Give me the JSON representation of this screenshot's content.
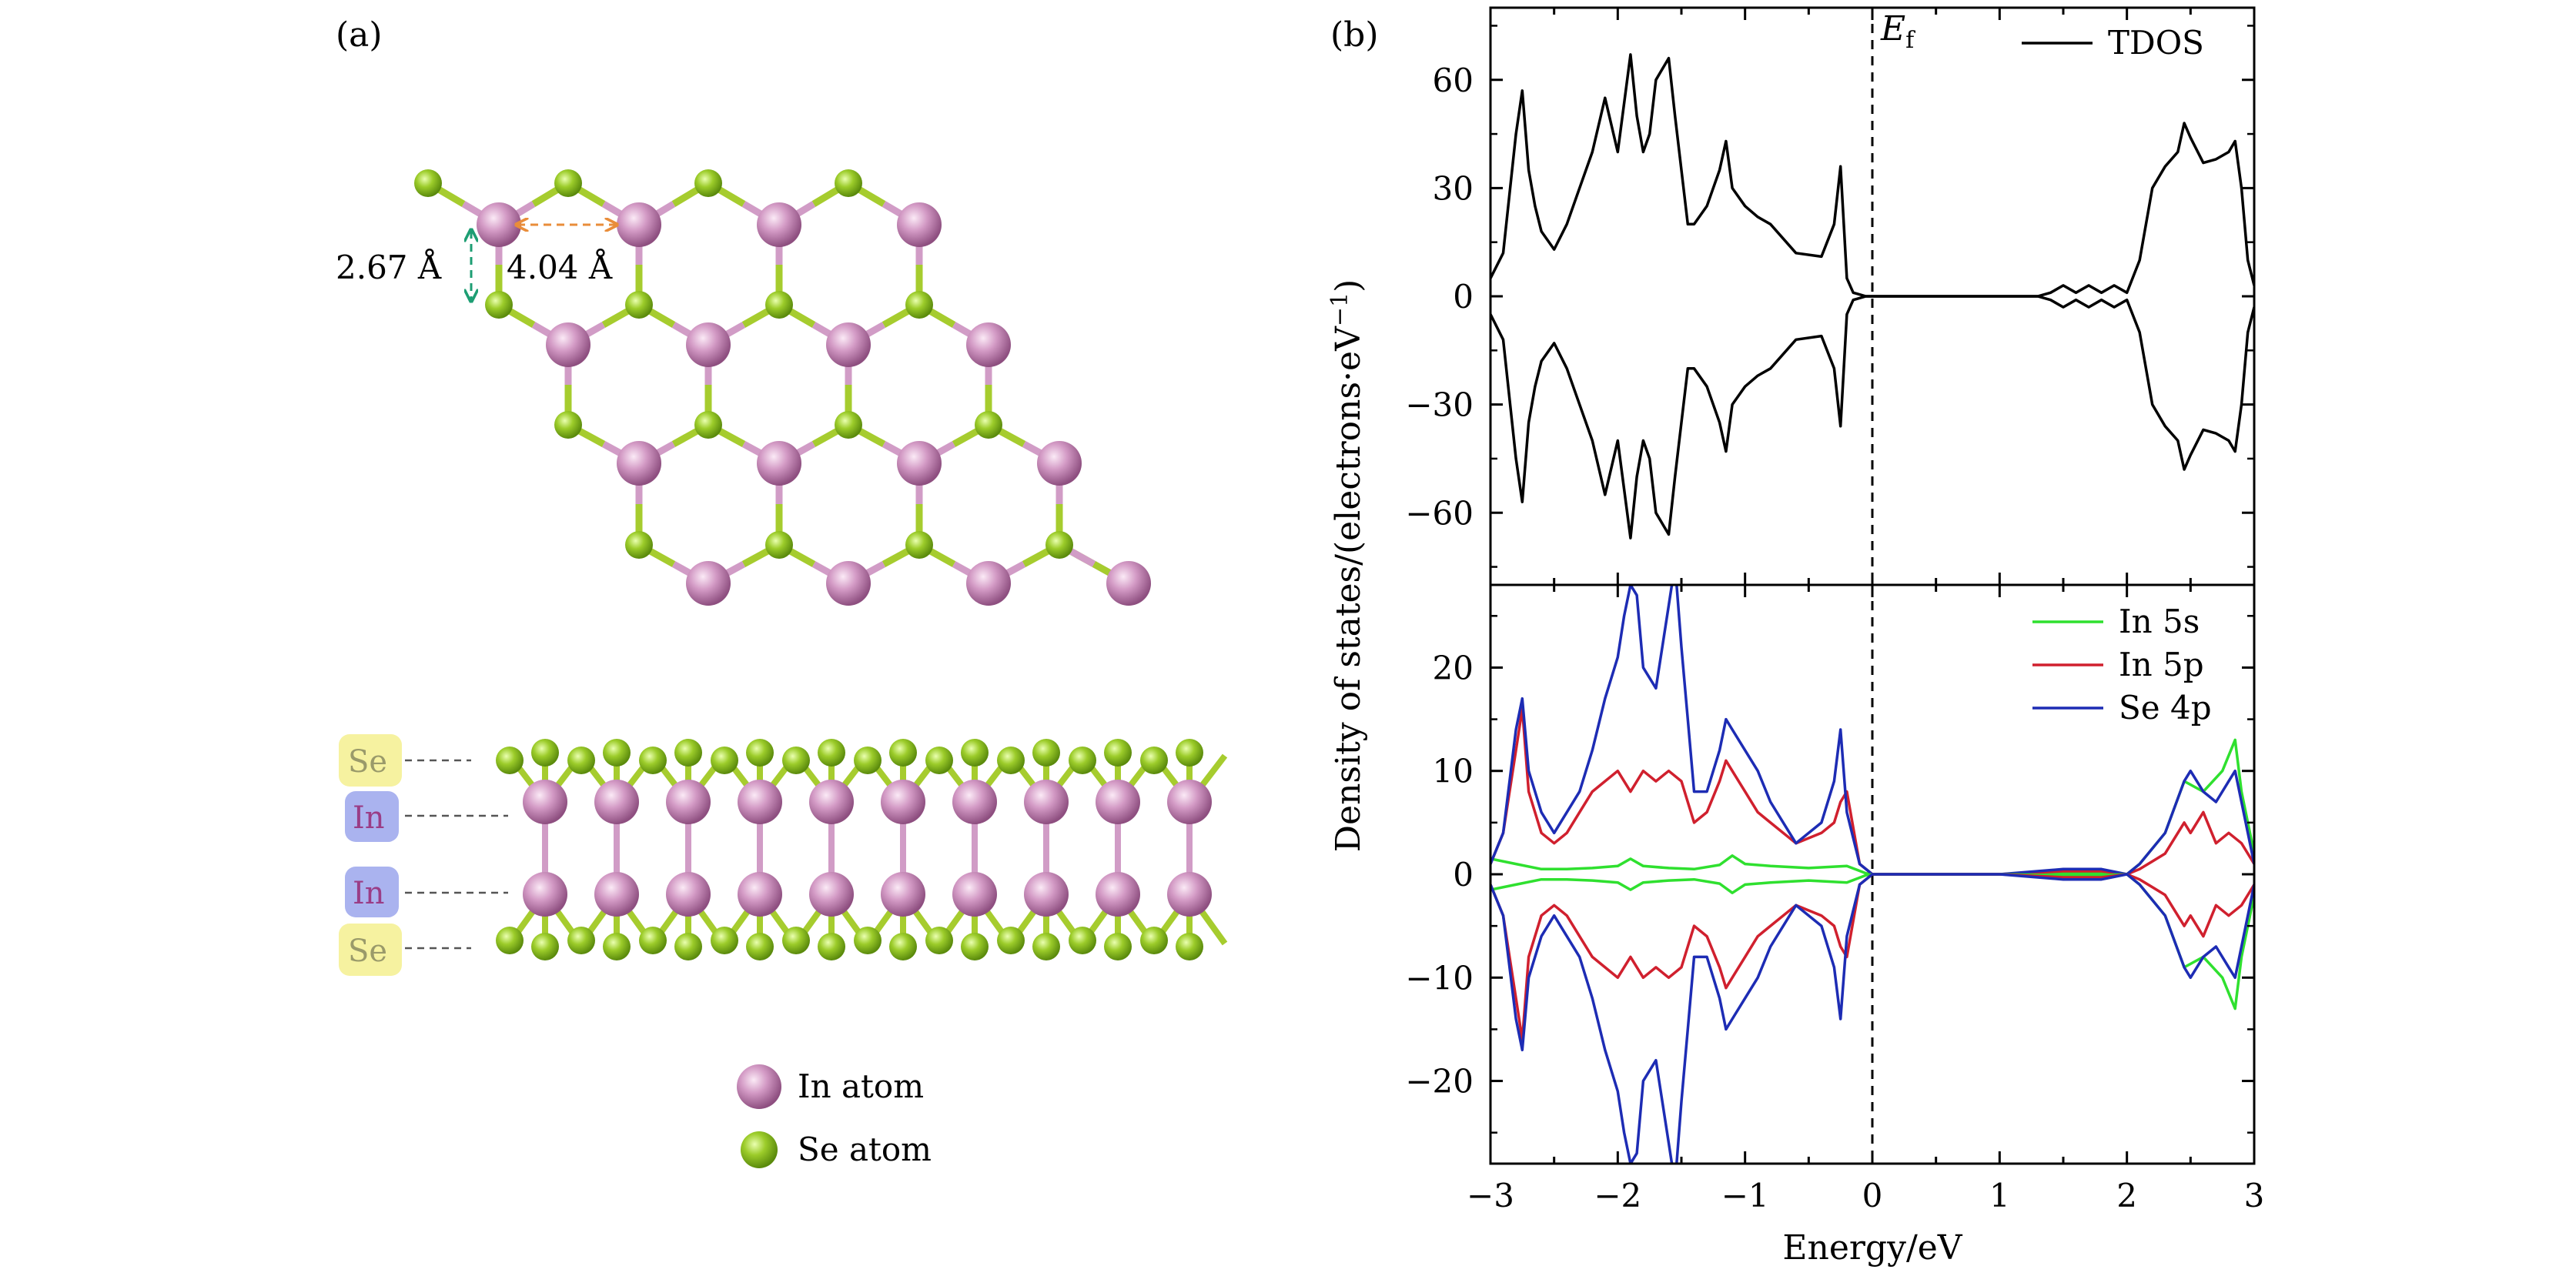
{
  "panel_a": {
    "label": "(a)",
    "dims": {
      "vertical": "2.67 Å",
      "horizontal": "4.04 Å"
    },
    "side_labels": [
      "Se",
      "In",
      "In",
      "Se"
    ],
    "legend": [
      {
        "label": "In atom",
        "color": "#b878a6"
      },
      {
        "label": "Se atom",
        "color": "#8fc21b"
      }
    ],
    "colors": {
      "in": "#c888b6",
      "se": "#93c524",
      "bond_se": "#a6cc2e",
      "bond_in": "#d19cc6",
      "dim_green": "#1d9e73",
      "dim_orange": "#e98d3a",
      "tag_se": "#f6f2a0",
      "tag_in": "#aab3ef"
    }
  },
  "panel_b": {
    "label": "(b)",
    "ylabel": "Density of states/(electrons·eV",
    "ylabel_sup": "−1",
    "ylabel_close": ")",
    "xlabel": "Energy/eV",
    "ef_label": "E",
    "ef_sub": "f",
    "chart_data": [
      {
        "type": "line",
        "xlim": [
          -3,
          3
        ],
        "ylim": [
          -80,
          80
        ],
        "yticks": [
          "60",
          "30",
          "0",
          "−30",
          "−60"
        ],
        "ytick_values": [
          60,
          30,
          0,
          -30,
          -60
        ],
        "legend_position": "top-right",
        "series": [
          {
            "name": "TDOS",
            "color": "#000000",
            "x": [
              -3.0,
              -2.9,
              -2.8,
              -2.75,
              -2.7,
              -2.65,
              -2.6,
              -2.5,
              -2.4,
              -2.3,
              -2.2,
              -2.1,
              -2.0,
              -1.9,
              -1.85,
              -1.8,
              -1.75,
              -1.7,
              -1.6,
              -1.55,
              -1.5,
              -1.45,
              -1.4,
              -1.3,
              -1.2,
              -1.15,
              -1.1,
              -1.0,
              -0.9,
              -0.8,
              -0.6,
              -0.4,
              -0.3,
              -0.25,
              -0.2,
              -0.15,
              -0.05,
              0.0,
              0.5,
              1.0,
              1.3,
              1.4,
              1.5,
              1.6,
              1.7,
              1.8,
              1.9,
              2.0,
              2.1,
              2.2,
              2.3,
              2.4,
              2.45,
              2.5,
              2.6,
              2.7,
              2.8,
              2.85,
              2.9,
              2.95,
              3.0
            ],
            "y": [
              5,
              12,
              45,
              57,
              35,
              25,
              18,
              13,
              20,
              30,
              40,
              55,
              40,
              67,
              50,
              40,
              45,
              60,
              66,
              50,
              35,
              20,
              20,
              25,
              35,
              43,
              30,
              25,
              22,
              20,
              12,
              11,
              20,
              36,
              5,
              1,
              0,
              0,
              0,
              0,
              0,
              1,
              3,
              1,
              3,
              1,
              3,
              1,
              10,
              30,
              36,
              40,
              48,
              44,
              37,
              38,
              40,
              43,
              30,
              10,
              3
            ]
          },
          {
            "name": "",
            "color": "#000000",
            "x": [
              -3.0,
              -2.9,
              -2.8,
              -2.75,
              -2.7,
              -2.65,
              -2.6,
              -2.5,
              -2.4,
              -2.3,
              -2.2,
              -2.1,
              -2.0,
              -1.9,
              -1.85,
              -1.8,
              -1.75,
              -1.7,
              -1.6,
              -1.55,
              -1.5,
              -1.45,
              -1.4,
              -1.3,
              -1.2,
              -1.15,
              -1.1,
              -1.0,
              -0.9,
              -0.8,
              -0.6,
              -0.4,
              -0.3,
              -0.25,
              -0.2,
              -0.15,
              -0.05,
              0.0,
              0.5,
              1.0,
              1.3,
              1.4,
              1.5,
              1.6,
              1.7,
              1.8,
              1.9,
              2.0,
              2.1,
              2.2,
              2.3,
              2.4,
              2.45,
              2.5,
              2.6,
              2.7,
              2.8,
              2.85,
              2.9,
              2.95,
              3.0
            ],
            "y": [
              -5,
              -12,
              -45,
              -57,
              -35,
              -25,
              -18,
              -13,
              -20,
              -30,
              -40,
              -55,
              -40,
              -67,
              -50,
              -40,
              -45,
              -60,
              -66,
              -50,
              -35,
              -20,
              -20,
              -25,
              -35,
              -43,
              -30,
              -25,
              -22,
              -20,
              -12,
              -11,
              -20,
              -36,
              -5,
              -1,
              0,
              0,
              0,
              0,
              0,
              -1,
              -3,
              -1,
              -3,
              -1,
              -3,
              -1,
              -10,
              -30,
              -36,
              -40,
              -48,
              -44,
              -37,
              -38,
              -40,
              -43,
              -30,
              -10,
              -3
            ]
          }
        ]
      },
      {
        "type": "line",
        "xlim": [
          -3,
          3
        ],
        "ylim": [
          -28,
          28
        ],
        "xticks": [
          "−3",
          "−2",
          "−1",
          "0",
          "1",
          "2",
          "3"
        ],
        "xtick_values": [
          -3,
          -2,
          -1,
          0,
          1,
          2,
          3
        ],
        "yticks": [
          "20",
          "10",
          "0",
          "−10",
          "−20"
        ],
        "ytick_values": [
          20,
          10,
          0,
          -10,
          -20
        ],
        "legend_position": "top-right",
        "series": [
          {
            "name": "In 5s",
            "color": "#2fe02f",
            "x": [
              -3.0,
              -2.8,
              -2.6,
              -2.4,
              -2.2,
              -2.0,
              -1.9,
              -1.8,
              -1.6,
              -1.4,
              -1.2,
              -1.1,
              -1.0,
              -0.8,
              -0.5,
              -0.2,
              -0.05,
              0.0,
              1.0,
              1.5,
              1.8,
              2.0,
              2.1,
              2.3,
              2.45,
              2.6,
              2.75,
              2.85,
              2.9,
              3.0
            ],
            "y": [
              1.5,
              1.0,
              0.5,
              0.5,
              0.6,
              0.8,
              1.5,
              0.8,
              0.6,
              0.5,
              0.9,
              1.8,
              1.0,
              0.8,
              0.6,
              0.8,
              0.1,
              0,
              0,
              0.1,
              0.1,
              0,
              1,
              4,
              9,
              8,
              10,
              13,
              8,
              2
            ]
          },
          {
            "name": "In 5p",
            "color": "#d0202e",
            "x": [
              -3.0,
              -2.9,
              -2.8,
              -2.75,
              -2.7,
              -2.6,
              -2.5,
              -2.4,
              -2.3,
              -2.2,
              -2.1,
              -2.0,
              -1.9,
              -1.8,
              -1.7,
              -1.6,
              -1.5,
              -1.4,
              -1.3,
              -1.2,
              -1.15,
              -1.1,
              -1.0,
              -0.9,
              -0.8,
              -0.6,
              -0.4,
              -0.3,
              -0.25,
              -0.2,
              -0.1,
              0.0,
              1.0,
              1.5,
              1.8,
              2.0,
              2.1,
              2.3,
              2.45,
              2.5,
              2.6,
              2.7,
              2.8,
              2.9,
              3.0
            ],
            "y": [
              1,
              4,
              12,
              16,
              8,
              4,
              3,
              4,
              6,
              8,
              9,
              10,
              8,
              10,
              9,
              10,
              9,
              5,
              6,
              9,
              11,
              10,
              8,
              6,
              5,
              3,
              4,
              5,
              7,
              8,
              1,
              0,
              0,
              0.3,
              0.3,
              0,
              0.5,
              2,
              5,
              4,
              6,
              3,
              4,
              3,
              1
            ]
          },
          {
            "name": "Se 4p",
            "color": "#1d2cb4",
            "x": [
              -3.0,
              -2.9,
              -2.8,
              -2.75,
              -2.7,
              -2.6,
              -2.5,
              -2.4,
              -2.3,
              -2.2,
              -2.1,
              -2.0,
              -1.95,
              -1.9,
              -1.85,
              -1.8,
              -1.7,
              -1.6,
              -1.55,
              -1.5,
              -1.45,
              -1.4,
              -1.3,
              -1.2,
              -1.15,
              -1.1,
              -1.0,
              -0.9,
              -0.8,
              -0.6,
              -0.4,
              -0.3,
              -0.25,
              -0.2,
              -0.1,
              0.0,
              1.0,
              1.5,
              1.8,
              2.0,
              2.1,
              2.3,
              2.45,
              2.5,
              2.6,
              2.7,
              2.8,
              2.85,
              2.9,
              3.0
            ],
            "y": [
              1,
              4,
              14,
              17,
              10,
              6,
              4,
              6,
              8,
              12,
              17,
              21,
              25,
              28,
              27,
              20,
              18,
              26,
              30,
              22,
              15,
              8,
              8,
              12,
              15,
              14,
              12,
              10,
              7,
              3,
              5,
              9,
              14,
              6,
              1,
              0,
              0,
              0.5,
              0.5,
              0,
              1,
              4,
              9,
              10,
              8,
              7,
              9,
              10,
              7,
              1
            ]
          },
          {
            "name": "",
            "color": "#2fe02f",
            "x": [
              -3.0,
              -2.8,
              -2.6,
              -2.4,
              -2.2,
              -2.0,
              -1.9,
              -1.8,
              -1.6,
              -1.4,
              -1.2,
              -1.1,
              -1.0,
              -0.8,
              -0.5,
              -0.2,
              -0.05,
              0.0,
              1.0,
              1.5,
              1.8,
              2.0,
              2.1,
              2.3,
              2.45,
              2.6,
              2.75,
              2.85,
              2.9,
              3.0
            ],
            "y": [
              -1.5,
              -1.0,
              -0.5,
              -0.5,
              -0.6,
              -0.8,
              -1.5,
              -0.8,
              -0.6,
              -0.5,
              -0.9,
              -1.8,
              -1.0,
              -0.8,
              -0.6,
              -0.8,
              -0.1,
              0,
              0,
              -0.1,
              -0.1,
              0,
              -1,
              -4,
              -9,
              -8,
              -10,
              -13,
              -8,
              -2
            ]
          },
          {
            "name": "",
            "color": "#d0202e",
            "x": [
              -3.0,
              -2.9,
              -2.8,
              -2.75,
              -2.7,
              -2.6,
              -2.5,
              -2.4,
              -2.3,
              -2.2,
              -2.1,
              -2.0,
              -1.9,
              -1.8,
              -1.7,
              -1.6,
              -1.5,
              -1.4,
              -1.3,
              -1.2,
              -1.15,
              -1.1,
              -1.0,
              -0.9,
              -0.8,
              -0.6,
              -0.4,
              -0.3,
              -0.25,
              -0.2,
              -0.1,
              0.0,
              1.0,
              1.5,
              1.8,
              2.0,
              2.1,
              2.3,
              2.45,
              2.5,
              2.6,
              2.7,
              2.8,
              2.9,
              3.0
            ],
            "y": [
              -1,
              -4,
              -12,
              -16,
              -8,
              -4,
              -3,
              -4,
              -6,
              -8,
              -9,
              -10,
              -8,
              -10,
              -9,
              -10,
              -9,
              -5,
              -6,
              -9,
              -11,
              -10,
              -8,
              -6,
              -5,
              -3,
              -4,
              -5,
              -7,
              -8,
              -1,
              0,
              0,
              -0.3,
              -0.3,
              0,
              -0.5,
              -2,
              -5,
              -4,
              -6,
              -3,
              -4,
              -3,
              -1
            ]
          },
          {
            "name": "",
            "color": "#1d2cb4",
            "x": [
              -3.0,
              -2.9,
              -2.8,
              -2.75,
              -2.7,
              -2.6,
              -2.5,
              -2.4,
              -2.3,
              -2.2,
              -2.1,
              -2.0,
              -1.95,
              -1.9,
              -1.85,
              -1.8,
              -1.7,
              -1.6,
              -1.55,
              -1.5,
              -1.45,
              -1.4,
              -1.3,
              -1.2,
              -1.15,
              -1.1,
              -1.0,
              -0.9,
              -0.8,
              -0.6,
              -0.4,
              -0.3,
              -0.25,
              -0.2,
              -0.1,
              0.0,
              1.0,
              1.5,
              1.8,
              2.0,
              2.1,
              2.3,
              2.45,
              2.5,
              2.6,
              2.7,
              2.8,
              2.85,
              2.9,
              3.0
            ],
            "y": [
              -1,
              -4,
              -14,
              -17,
              -10,
              -6,
              -4,
              -6,
              -8,
              -12,
              -17,
              -21,
              -25,
              -28,
              -27,
              -20,
              -18,
              -26,
              -30,
              -22,
              -15,
              -8,
              -8,
              -12,
              -15,
              -14,
              -12,
              -10,
              -7,
              -3,
              -5,
              -9,
              -14,
              -6,
              -1,
              0,
              0,
              -0.5,
              -0.5,
              0,
              -1,
              -4,
              -9,
              -10,
              -8,
              -7,
              -9,
              -10,
              -7,
              -1
            ]
          }
        ]
      }
    ]
  }
}
